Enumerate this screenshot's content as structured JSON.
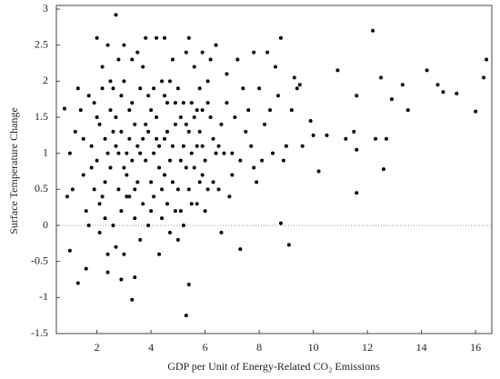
{
  "chart_data": {
    "type": "scatter",
    "x_label": "GDP per Unit of Energy-Related CO₂ Emissions",
    "y_label": "Surface Temperature Change",
    "color": "#000000",
    "hline": 0,
    "xlim": [
      0.5,
      16.6
    ],
    "ylim": [
      -1.5,
      3
    ],
    "xticks": [
      2,
      4,
      6,
      8,
      10,
      12,
      14,
      16
    ],
    "yticks": [
      3,
      2.5,
      2,
      1.5,
      1,
      0.5,
      0,
      -0.5,
      -1,
      -1.5
    ],
    "x": [
      2.1,
      2.3,
      2.5,
      2.2,
      2.7,
      2.9,
      3.1,
      3.3,
      3.5,
      3.7,
      3.9,
      4.1,
      4.3,
      4.5,
      4.7,
      4.9,
      5.1,
      5.3,
      5.5,
      5.7,
      5.9,
      6.1,
      6.3,
      6.5,
      6.8,
      7.0,
      7.2,
      7.5,
      7.8,
      8.0,
      1.8,
      1.9,
      2.0,
      2.4,
      2.6,
      2.8,
      3.0,
      3.2,
      3.4,
      3.6,
      3.8,
      4.0,
      4.2,
      4.4,
      4.6,
      4.8,
      5.0,
      5.2,
      5.4,
      5.6,
      5.8,
      6.0,
      6.2,
      6.4,
      6.7,
      6.9,
      7.1,
      7.4,
      7.7,
      8.2,
      1.2,
      1.5,
      1.7,
      2.1,
      2.3,
      2.5,
      2.7,
      2.9,
      3.1,
      3.3,
      3.5,
      3.7,
      3.9,
      4.1,
      4.3,
      4.5,
      4.7,
      4.9,
      5.1,
      5.3,
      5.5,
      5.7,
      5.9,
      6.1,
      6.3,
      6.6,
      7.9,
      8.5,
      8.7,
      9.0,
      1.1,
      1.4,
      1.6,
      2.0,
      2.2,
      2.4,
      2.6,
      2.8,
      3.0,
      3.2,
      3.4,
      3.6,
      3.8,
      4.0,
      4.2,
      4.4,
      4.6,
      4.8,
      5.0,
      5.2,
      5.4,
      5.6,
      5.8,
      6.0,
      6.2,
      6.5,
      7.0,
      7.6,
      8.1,
      8.4,
      2.1,
      2.3,
      2.5,
      2.7,
      2.9,
      3.1,
      3.3,
      3.5,
      3.7,
      3.9,
      4.1,
      4.3,
      4.5,
      4.7,
      4.9,
      5.1,
      5.3,
      5.5,
      5.7,
      5.9,
      6.1,
      6.4,
      6.8,
      7.3,
      9.2,
      8.9,
      9.6,
      8.6,
      9.4,
      7.8,
      1.9,
      2.2,
      2.4,
      2.6,
      2.8,
      3.0,
      3.2,
      3.4,
      3.6,
      3.8,
      4.0,
      4.2,
      4.4,
      4.6,
      4.8,
      5.0,
      5.2,
      5.4,
      5.6,
      5.8,
      0.9,
      1.0,
      1.3,
      1.5,
      1.7,
      1.8,
      2.0,
      4.5,
      3.0,
      5.9,
      2.7,
      12.2,
      16.4,
      16.3,
      16.0,
      15.3,
      14.8,
      14.6,
      14.2,
      13.3,
      13.5,
      12.5,
      12.9,
      12.3,
      12.6,
      12.7,
      11.5,
      11.6,
      11.6,
      11.6,
      10.9,
      11.2,
      10.5,
      10.0,
      10.2,
      9.9,
      9.5,
      9.3,
      9.1,
      8.8,
      8.8,
      8.3,
      5.3,
      5.4,
      3.3,
      3.4,
      1.3,
      1.0,
      0.8,
      1.6,
      2.4,
      2.9,
      7.3,
      6.6
    ],
    "values": [
      0.3,
      1.2,
      0.8,
      1.9,
      1.5,
      0.2,
      1.0,
      1.7,
      0.6,
      2.2,
      1.3,
      0.4,
      1.1,
      1.8,
      0.9,
      1.4,
      0.2,
      2.4,
      1.0,
      1.6,
      0.7,
      2.0,
      1.2,
      0.5,
      1.7,
      1.0,
      2.3,
      1.3,
      0.8,
      1.9,
      1.1,
      0.5,
      1.5,
      2.5,
      0.0,
      1.0,
      2.0,
      0.4,
      1.4,
      -0.2,
      0.9,
      1.6,
      2.6,
      0.1,
      1.3,
      0.6,
      1.9,
      1.1,
      0.5,
      2.2,
      1.3,
      0.9,
      1.5,
      2.5,
      1.0,
      0.4,
      1.5,
      1.9,
      1.1,
      1.4,
      1.3,
      0.7,
      1.8,
      -0.1,
      0.6,
      1.6,
      -0.3,
      1.3,
      0.7,
      2.3,
      1.1,
      0.3,
      1.8,
      1.0,
      -0.4,
      0.7,
      2.0,
      0.2,
      1.5,
      0.8,
      1.7,
      0.3,
      1.1,
      1.7,
      0.6,
      1.4,
      0.6,
      1.0,
      1.8,
      1.1,
      0.5,
      1.6,
      0.2,
      0.9,
      2.2,
      1.0,
      1.9,
      0.5,
      -0.4,
      1.2,
      0.1,
      1.9,
      1.4,
      0.6,
      1.5,
      2.0,
      0.3,
      1.1,
      -0.2,
      1.7,
      2.6,
      0.8,
      1.9,
      0.2,
      2.3,
      1.1,
      0.7,
      1.6,
      0.9,
      1.6,
      1.4,
      0.1,
      2.0,
      1.1,
      1.8,
      0.4,
      0.9,
      2.4,
      1.2,
      0.0,
      1.9,
      0.8,
      1.2,
      -0.1,
      1.7,
      0.9,
      1.4,
      0.3,
      1.1,
      2.4,
      0.5,
      1.0,
      2.1,
      0.9,
      1.6,
      0.9,
      1.1,
      2.2,
      1.9,
      2.4,
      1.7,
      0.4,
      -0.4,
      1.3,
      2.3,
      0.8,
      1.6,
      0.5,
      1.0,
      2.6,
      0.2,
      1.2,
      0.5,
      1.7,
      2.3,
      0.5,
      0.0,
      1.3,
      1.5,
      0.6,
      0.4,
      1.0,
      1.9,
      1.2,
      0.0,
      0.8,
      2.6,
      2.6,
      2.5,
      1.6,
      2.92,
      2.7,
      2.3,
      2.05,
      1.58,
      1.83,
      1.85,
      1.95,
      2.15,
      1.95,
      1.6,
      2.05,
      1.75,
      1.2,
      0.78,
      1.2,
      1.3,
      1.05,
      0.45,
      1.8,
      2.15,
      1.2,
      1.25,
      1.25,
      0.75,
      1.45,
      1.95,
      2.05,
      -0.27,
      0.03,
      2.6,
      2.4,
      -1.25,
      -0.82,
      -1.03,
      -0.72,
      -0.8,
      -0.35,
      1.62,
      -0.6,
      -0.65,
      -0.75,
      -0.33,
      -0.1
    ]
  }
}
